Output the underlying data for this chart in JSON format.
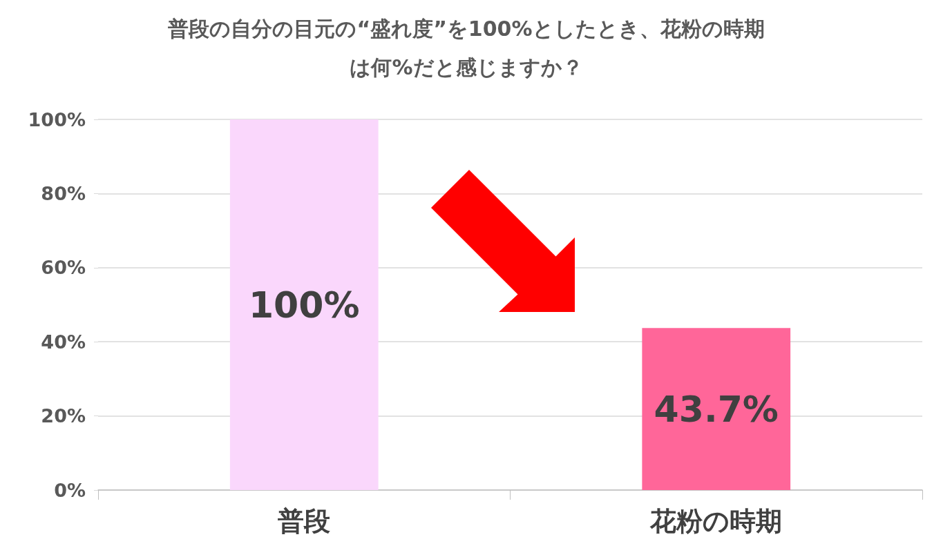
{
  "chart_data": {
    "type": "bar",
    "title": "普段の自分の目元の“盛れ度”を100%としたとき、花粉の時期は何%だと感じますか？",
    "categories": [
      "普段",
      "花粉の時期"
    ],
    "values": [
      100,
      43.7
    ],
    "colors": [
      "#fad7fc",
      "#ff6699"
    ],
    "value_labels": [
      "100%",
      "43.7%"
    ],
    "ylim": [
      0,
      100
    ],
    "yticks": [
      {
        "value": 0,
        "label": "0%"
      },
      {
        "value": 20,
        "label": "20%"
      },
      {
        "value": 40,
        "label": "40%"
      },
      {
        "value": 60,
        "label": "60%"
      },
      {
        "value": 80,
        "label": "80%"
      },
      {
        "value": 100,
        "label": "100%"
      }
    ],
    "grid": "y"
  }
}
